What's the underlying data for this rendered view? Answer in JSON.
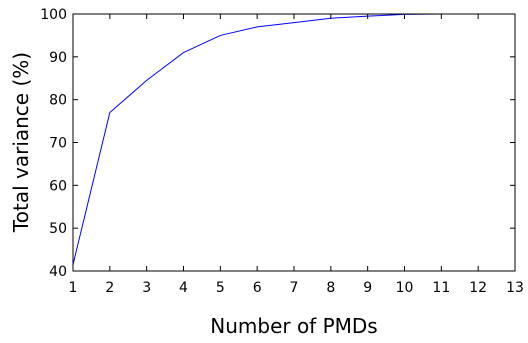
{
  "chart_data": {
    "type": "line",
    "title": "",
    "xlabel": "Number of PMDs",
    "ylabel": "Total variance (%)",
    "xlim": [
      1,
      13
    ],
    "ylim": [
      40,
      100
    ],
    "xticks": [
      1,
      2,
      3,
      4,
      5,
      6,
      7,
      8,
      9,
      10,
      11,
      12,
      13
    ],
    "yticks": [
      40,
      50,
      60,
      70,
      80,
      90,
      100
    ],
    "grid": false,
    "legend": "none",
    "series": [
      {
        "color": "#0000ff",
        "x": [
          1,
          2,
          3,
          4,
          5,
          6,
          7,
          8,
          9,
          10,
          11,
          12,
          13
        ],
        "y": [
          41.5,
          77,
          84.5,
          91,
          95,
          97,
          98,
          99,
          99.5,
          99.9,
          100,
          100,
          100
        ]
      }
    ]
  }
}
